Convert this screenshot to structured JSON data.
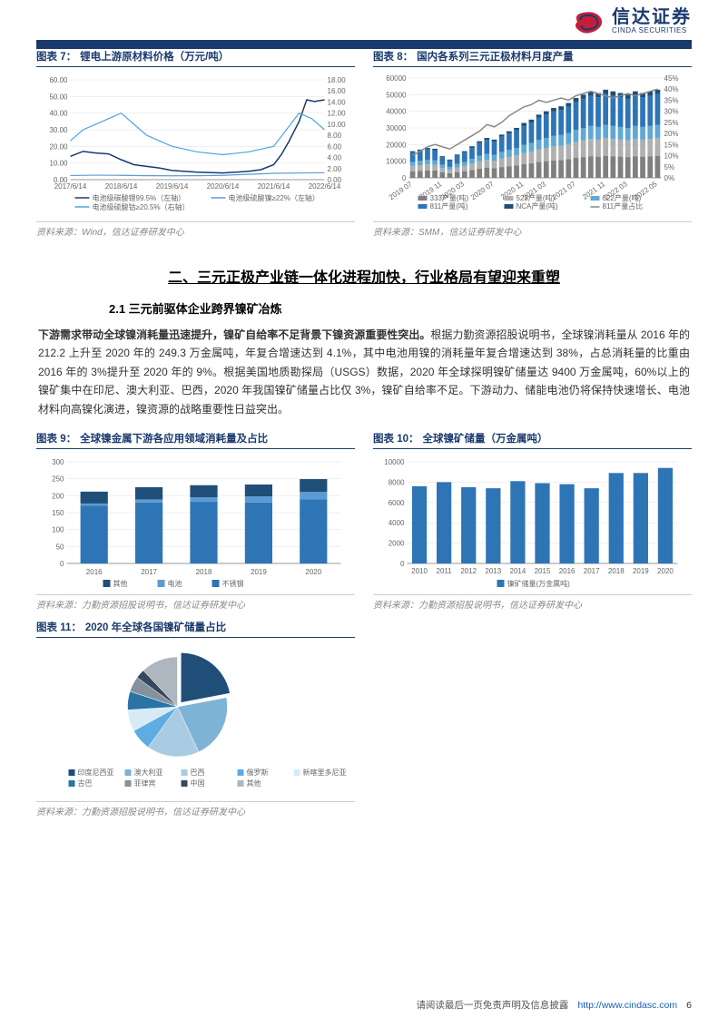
{
  "brand": {
    "cn": "信达证券",
    "en": "CINDA SECURITIES"
  },
  "chart7": {
    "numLabel": "图表 7：",
    "title": "锂电上游原材料价格（万元/吨）",
    "source": "资料来源：Wind，信达证券研发中心",
    "ylim": [
      0,
      60
    ],
    "ytick_step": 10,
    "y2lim": [
      0,
      18
    ],
    "y2tick_step": 2,
    "x_labels": [
      "2017/6/14",
      "2018/6/14",
      "2019/6/14",
      "2020/6/14",
      "2021/6/14",
      "2022/6/14"
    ],
    "series": [
      {
        "name": "电池级碳酸锂99.5%（左轴）",
        "color": "#1a3a6e",
        "width": 1.5,
        "x": [
          0,
          0.05,
          0.1,
          0.15,
          0.2,
          0.25,
          0.3,
          0.35,
          0.4,
          0.5,
          0.6,
          0.7,
          0.75,
          0.8,
          0.83,
          0.86,
          0.9,
          0.93,
          0.96,
          1.0
        ],
        "y": [
          14,
          17,
          16,
          15.5,
          12,
          9,
          8,
          7,
          5.5,
          4.5,
          4,
          5,
          6,
          9,
          15,
          23,
          35,
          48,
          47,
          48
        ]
      },
      {
        "name": "电池级硫酸镍≥22%（左轴）",
        "color": "#5b9bd5",
        "width": 1.2,
        "x": [
          0,
          0.1,
          0.2,
          0.3,
          0.4,
          0.5,
          0.6,
          0.7,
          0.8,
          0.9,
          1.0
        ],
        "y": [
          2.5,
          2.7,
          2.6,
          2.4,
          2.3,
          2.4,
          2.6,
          3.2,
          3.8,
          4.0,
          4.2
        ]
      },
      {
        "name": "电池级硫酸钴≥20.5%（右轴）",
        "color": "#4aa8d8",
        "width": 1.2,
        "axis": "right",
        "x": [
          0,
          0.05,
          0.1,
          0.15,
          0.2,
          0.25,
          0.3,
          0.4,
          0.5,
          0.6,
          0.7,
          0.8,
          0.85,
          0.9,
          0.95,
          1.0
        ],
        "y": [
          7,
          9,
          10,
          11,
          12,
          10,
          8,
          6,
          5,
          4.5,
          5,
          6,
          9,
          12,
          11,
          9
        ]
      }
    ],
    "bg": "#ffffff",
    "grid": "#e8e8e8"
  },
  "chart8": {
    "numLabel": "图表 8：",
    "title": "国内各系列三元正极材料月度产量",
    "source": "资料来源：SMM，信达证券研发中心",
    "ylim": [
      0,
      60000
    ],
    "ytick_step": 10000,
    "y2lim": [
      0,
      45
    ],
    "y2tick_step": 5,
    "y2suffix": "%",
    "x_labels": [
      "2019 07",
      "2019 11",
      "2020 03",
      "2020 07",
      "2020 11",
      "2021 03",
      "2021 07",
      "2021 11",
      "2022 03",
      "2022 05"
    ],
    "stack_colors": {
      "333": "#7f7f7f",
      "523": "#b0b0b0",
      "622": "#5fa8d3",
      "811": "#2e75b6",
      "NCA": "#1f4e79"
    },
    "stack_legend": [
      "333产量(吨)",
      "523产量(吨)",
      "622产量(吨)",
      "811产量(吨)",
      "NCA产量(吨)",
      "811产量占比"
    ],
    "line_color": "#888888",
    "bars_total": [
      16000,
      17000,
      18000,
      17500,
      13000,
      11000,
      14000,
      16000,
      19000,
      22000,
      24000,
      23000,
      26000,
      28000,
      30000,
      33000,
      35000,
      38000,
      40000,
      42000,
      43000,
      45000,
      48000,
      50000,
      52000,
      51000,
      53000,
      52000,
      51000,
      50000,
      52000,
      51000,
      52000,
      53000
    ],
    "line_pct": [
      10,
      12,
      14,
      15,
      14,
      13,
      15,
      17,
      19,
      21,
      24,
      23,
      25,
      28,
      30,
      32,
      33,
      35,
      34,
      35,
      36,
      35,
      37,
      38,
      39,
      38,
      37,
      36,
      37,
      38,
      37,
      38,
      39,
      40
    ],
    "bg": "#ffffff",
    "grid": "#e8e8e8"
  },
  "section": {
    "title": "二、三元正极产业链一体化进程加快，行业格局有望迎来重塑",
    "sub": "2.1 三元前驱体企业跨界镍矿冶炼",
    "para_bold": "下游需求带动全球镍消耗量迅速提升，镍矿自给率不足背景下镍资源重要性突出。",
    "para_rest": "根据力勤资源招股说明书，全球镍消耗量从 2016 年的 212.2 上升至 2020 年的 249.3 万金属吨，年复合增速达到 4.1%，其中电池用镍的消耗量年复合增速达到 38%，占总消耗量的比重由 2016 年的 3%提升至 2020 年的 9%。根据美国地质勘探局（USGS）数据，2020 年全球探明镍矿储量达 9400 万金属吨，60%以上的镍矿集中在印尼、澳大利亚、巴西，2020 年我国镍矿储量占比仅 3%，镍矿自给率不足。下游动力、储能电池仍将保持快速增长、电池材料向高镍化演进，镍资源的战略重要性日益突出。"
  },
  "chart9": {
    "numLabel": "图表 9：",
    "title": "全球镍金属下游各应用领域消耗量及占比",
    "source": "资料来源：力勤资源招股说明书，信达证券研发中心",
    "ylim": [
      0,
      300
    ],
    "ytick_step": 50,
    "x": [
      "2016",
      "2017",
      "2018",
      "2019",
      "2020"
    ],
    "series": [
      {
        "name": "其他",
        "color": "#1f4e79",
        "vals": [
          35,
          36,
          36,
          35,
          38
        ]
      },
      {
        "name": "电池",
        "color": "#5b9bd5",
        "vals": [
          6,
          9,
          13,
          18,
          22
        ]
      },
      {
        "name": "不锈钢",
        "color": "#2e75b6",
        "vals": [
          171,
          180,
          182,
          180,
          189
        ]
      }
    ],
    "bar_width": 0.5,
    "bg": "#ffffff",
    "grid": "#e8e8e8"
  },
  "chart10": {
    "numLabel": "图表 10：",
    "title": "全球镍矿储量（万金属吨）",
    "source": "资料来源：力勤资源招股说明书，信达证券研发中心",
    "ylim": [
      0,
      10000
    ],
    "ytick_step": 2000,
    "x": [
      "2010",
      "2011",
      "2012",
      "2013",
      "2014",
      "2015",
      "2016",
      "2017",
      "2018",
      "2019",
      "2020"
    ],
    "vals": [
      7600,
      8000,
      7500,
      7400,
      8100,
      7900,
      7800,
      7400,
      8900,
      8900,
      9400
    ],
    "color": "#2e75b6",
    "bar_width": 0.6,
    "legend": "镍矿储量(万金属吨)",
    "bg": "#ffffff",
    "grid": "#e8e8e8"
  },
  "chart11": {
    "numLabel": "图表 11：",
    "title": "2020 年全球各国镍矿储量占比",
    "source": "资料来源：力勤资源招股说明书，信达证券研发中心",
    "slices": [
      {
        "name": "印度尼西亚",
        "color": "#1f4e79",
        "val": 22
      },
      {
        "name": "澳大利亚",
        "color": "#7fb3d5",
        "val": 21
      },
      {
        "name": "巴西",
        "color": "#a9cce3",
        "val": 17
      },
      {
        "name": "俄罗斯",
        "color": "#5dade2",
        "val": 7
      },
      {
        "name": "新喀里多尼亚",
        "color": "#d6eaf8",
        "val": 7
      },
      {
        "name": "古巴",
        "color": "#2874a6",
        "val": 6
      },
      {
        "name": "菲律宾",
        "color": "#85929e",
        "val": 5
      },
      {
        "name": "中国",
        "color": "#34495e",
        "val": 3
      },
      {
        "name": "其他",
        "color": "#aeb6bf",
        "val": 12
      }
    ],
    "bg": "#ffffff"
  },
  "footer": {
    "text": "请阅读最后一页免责声明及信息披露",
    "url": "http://www.cindasc.com",
    "page": "6"
  }
}
